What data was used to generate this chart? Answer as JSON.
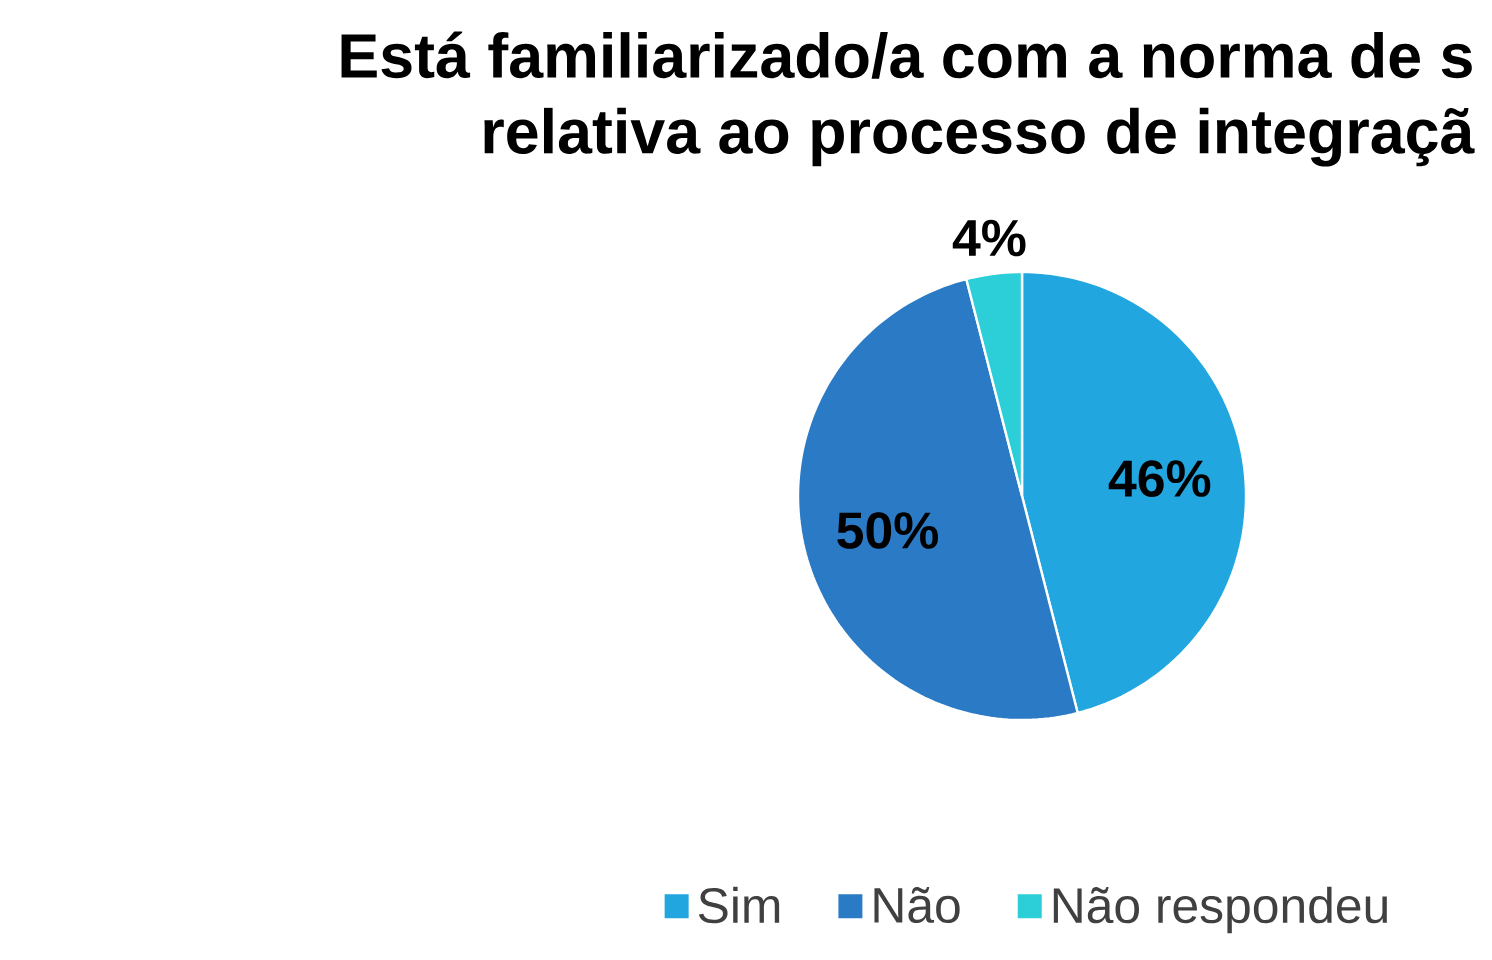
{
  "chart_data": {
    "type": "pie",
    "title": "Está familiarizado/a com a norma de s relativa ao processo de integraçã",
    "categories": [
      "Sim",
      "Não",
      "Não respondeu"
    ],
    "values": [
      46,
      50,
      4
    ],
    "colors": [
      "#22a6e0",
      "#2a7ac6",
      "#2ccfd8"
    ],
    "value_labels": [
      "46%",
      "50%",
      "4%"
    ],
    "legend": "bottom"
  }
}
